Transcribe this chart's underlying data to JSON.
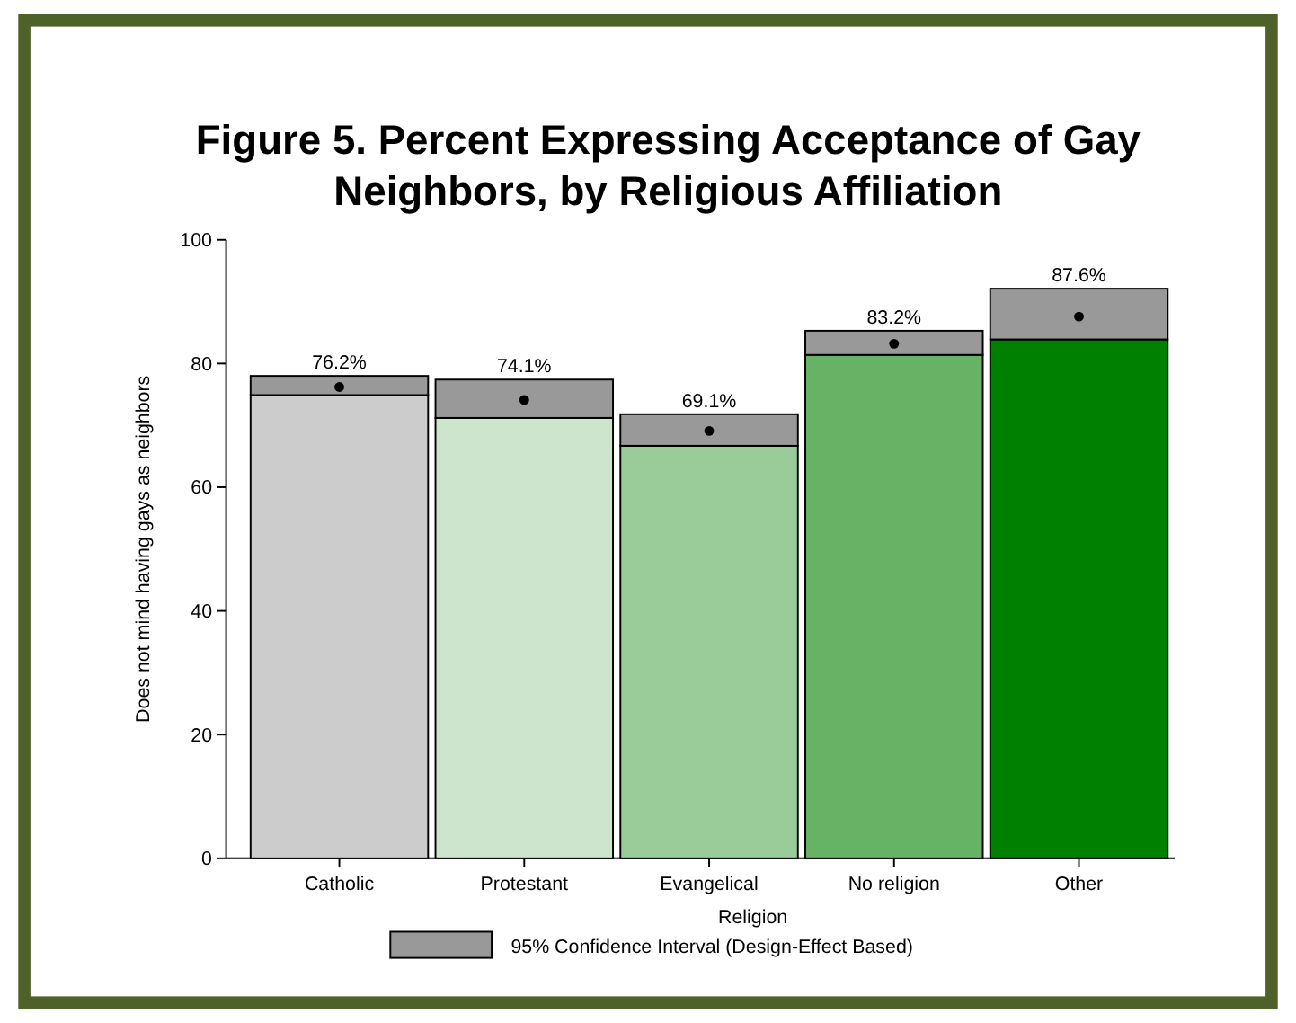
{
  "chart_data": {
    "type": "bar",
    "title": "Figure 5. Percent Expressing Acceptance of Gay Neighbors, by Religious Affiliation",
    "xlabel": "Religion",
    "ylabel": "Does not mind having gays as neighbors",
    "categories": [
      "Catholic",
      "Protestant",
      "Evangelical",
      "No religion",
      "Other"
    ],
    "stacked": true,
    "legend": "bottom",
    "marker": "circle",
    "series": [
      {
        "type": "bar",
        "colors": [
          "#cccccc",
          "#cce5cc",
          "#99cc99",
          "#66b366",
          "#008000"
        ],
        "values": [
          74.9,
          71.2,
          66.7,
          81.4,
          83.9
        ]
      },
      {
        "type": "bar",
        "name": "95% Confidence Interval (Design-Effect Based)",
        "color": "#999999",
        "values": [
          3.1,
          6.2,
          5.1,
          3.9,
          8.2
        ]
      },
      {
        "type": "scatter",
        "color": "#000000",
        "x": [
          "Catholic",
          "Protestant",
          "Evangelical",
          "No religion",
          "Other"
        ],
        "values": [
          76.2,
          74.1,
          69.1,
          83.2,
          87.6
        ],
        "value_labels": [
          "76.2%",
          "74.1%",
          "69.1%",
          "83.2%",
          "87.6%"
        ]
      }
    ],
    "ylim": [
      0,
      100
    ],
    "yticks": [
      0,
      20,
      40,
      60,
      80,
      100
    ]
  }
}
